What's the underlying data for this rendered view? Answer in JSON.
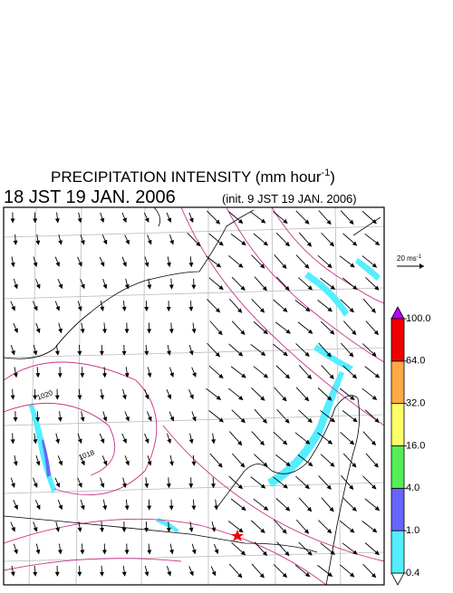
{
  "title": {
    "main": "PRECIPITATION INTENSITY (mm hour",
    "sup": "-1",
    "end": ")"
  },
  "valid_time": "18 JST 19 JAN. 2006",
  "init_time": "(init. 9 JST 19 JAN. 2006)",
  "vector_reference": {
    "main": "20 ms",
    "sup": "-1"
  },
  "contour_labels": [
    "1020",
    "1018"
  ],
  "colorbar": {
    "levels": [
      {
        "value": 0.4,
        "label": "0.4"
      },
      {
        "value": 1,
        "label": "1.0"
      },
      {
        "value": 4,
        "label": "4.0"
      },
      {
        "value": 16,
        "label": "16.0"
      },
      {
        "value": 32,
        "label": "32.0"
      },
      {
        "value": 64,
        "label": "64.0"
      },
      {
        "value": 100,
        "label": "100.0"
      }
    ],
    "colors": [
      "#55eeff",
      "#6666ff",
      "#55ee55",
      "#ffff66",
      "#ffaa44",
      "#ee0000"
    ],
    "under_color": "#ffffff",
    "over_color": "#bb00ff"
  }
}
